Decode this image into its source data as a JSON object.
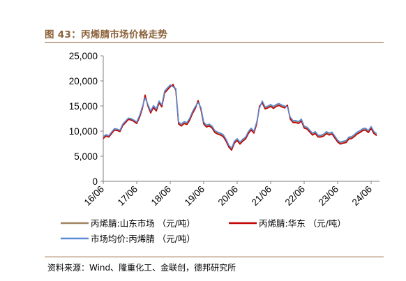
{
  "header": {
    "title": "图 43：丙烯腈市场价格走势"
  },
  "footer": {
    "source": "资料来源：Wind、隆重化工、金联创，德邦研究所"
  },
  "colors": {
    "title": "#8c6239",
    "series_shandong": "#a08563",
    "series_huadong": "#c00000",
    "series_junjia": "#5b8bd4"
  },
  "chart_data": {
    "type": "line",
    "title": "",
    "xlabel": "",
    "ylabel": "",
    "ylim": [
      0,
      25000
    ],
    "yticks": [
      0,
      5000,
      10000,
      15000,
      20000,
      25000
    ],
    "ytick_labels": [
      "0",
      "5,000",
      "10,000",
      "15,000",
      "20,000",
      "25,000"
    ],
    "x_ticks": [
      "16/06",
      "17/06",
      "18/06",
      "19/06",
      "20/06",
      "21/06",
      "22/06",
      "23/06",
      "24/06"
    ],
    "xlim": [
      "2016-06",
      "2024-09"
    ],
    "grid": false,
    "legend_position": "bottom",
    "x": [
      "2016-06",
      "2016-07",
      "2016-08",
      "2016-09",
      "2016-10",
      "2016-11",
      "2016-12",
      "2017-01",
      "2017-02",
      "2017-03",
      "2017-04",
      "2017-05",
      "2017-06",
      "2017-07",
      "2017-08",
      "2017-09",
      "2017-10",
      "2017-11",
      "2017-12",
      "2018-01",
      "2018-02",
      "2018-03",
      "2018-04",
      "2018-05",
      "2018-06",
      "2018-07",
      "2018-08",
      "2018-09",
      "2018-10",
      "2018-11",
      "2018-12",
      "2019-01",
      "2019-02",
      "2019-03",
      "2019-04",
      "2019-05",
      "2019-06",
      "2019-07",
      "2019-08",
      "2019-09",
      "2019-10",
      "2019-11",
      "2019-12",
      "2020-01",
      "2020-02",
      "2020-03",
      "2020-04",
      "2020-05",
      "2020-06",
      "2020-07",
      "2020-08",
      "2020-09",
      "2020-10",
      "2020-11",
      "2020-12",
      "2021-01",
      "2021-02",
      "2021-03",
      "2021-04",
      "2021-05",
      "2021-06",
      "2021-07",
      "2021-08",
      "2021-09",
      "2021-10",
      "2021-11",
      "2021-12",
      "2022-01",
      "2022-02",
      "2022-03",
      "2022-04",
      "2022-05",
      "2022-06",
      "2022-07",
      "2022-08",
      "2022-09",
      "2022-10",
      "2022-11",
      "2022-12",
      "2023-01",
      "2023-02",
      "2023-03",
      "2023-04",
      "2023-05",
      "2023-06",
      "2023-07",
      "2023-08",
      "2023-09",
      "2023-10",
      "2023-11",
      "2023-12",
      "2024-01",
      "2024-02",
      "2024-03",
      "2024-04",
      "2024-05",
      "2024-06",
      "2024-07",
      "2024-08"
    ],
    "series": [
      {
        "name": "丙烯腈:山东市场 （元/吨）",
        "key": "shandong",
        "values": [
          8700,
          9100,
          8900,
          9600,
          10300,
          10200,
          10000,
          11200,
          11800,
          12400,
          12300,
          12000,
          11600,
          12900,
          14600,
          17000,
          15200,
          13800,
          14900,
          14200,
          15800,
          15000,
          17800,
          18400,
          19000,
          19100,
          18300,
          11600,
          11200,
          11700,
          11500,
          12400,
          13700,
          14700,
          16000,
          14500,
          11600,
          11000,
          11200,
          10800,
          9900,
          9600,
          9400,
          9100,
          8200,
          7000,
          6400,
          7800,
          8300,
          7600,
          8200,
          8600,
          9700,
          10400,
          9800,
          11600,
          14900,
          15800,
          14600,
          14800,
          15100,
          14700,
          15100,
          15300,
          15000,
          14800,
          15000,
          12600,
          11900,
          11900,
          11700,
          12200,
          10800,
          10600,
          10000,
          9400,
          9700,
          9000,
          9000,
          9200,
          9700,
          9400,
          9600,
          8800,
          8000,
          7600,
          7800,
          7900,
          8600,
          8700,
          9100,
          9600,
          9900,
          10300,
          10400,
          9900,
          10700,
          9700,
          9300
        ]
      },
      {
        "name": "丙烯腈:华东 （元/吨）",
        "key": "huadong",
        "values": [
          8500,
          9000,
          8800,
          9500,
          10200,
          10100,
          9900,
          11100,
          11700,
          12300,
          12200,
          11900,
          11500,
          12700,
          14400,
          17200,
          15000,
          13600,
          14700,
          14000,
          15600,
          14800,
          17600,
          18200,
          18800,
          19300,
          18100,
          11400,
          11000,
          11500,
          11300,
          12200,
          13500,
          14500,
          16100,
          14300,
          11400,
          10800,
          11000,
          10600,
          9700,
          9400,
          9200,
          8900,
          8000,
          6800,
          6200,
          7600,
          8100,
          7400,
          8000,
          8400,
          9500,
          10200,
          9600,
          11400,
          15000,
          15600,
          14400,
          14600,
          14900,
          14500,
          14900,
          15100,
          14800,
          14600,
          15200,
          12400,
          11700,
          11700,
          11500,
          12000,
          10600,
          10400,
          9800,
          9200,
          9500,
          8800,
          8800,
          9000,
          9500,
          9200,
          9400,
          8600,
          7800,
          7400,
          7600,
          7700,
          8400,
          8500,
          8900,
          9400,
          9700,
          10100,
          10200,
          9700,
          10500,
          9500,
          9100
        ]
      },
      {
        "name": "市场均价:丙烯腈 （元/吨）",
        "key": "junjia",
        "values": [
          8900,
          9300,
          9100,
          9800,
          10500,
          10400,
          10200,
          11400,
          12000,
          12600,
          12500,
          12200,
          11800,
          13100,
          14800,
          16600,
          15300,
          14000,
          15100,
          14400,
          16000,
          15200,
          18000,
          18600,
          19200,
          18800,
          18500,
          11800,
          11400,
          11900,
          11700,
          12600,
          13900,
          14900,
          15700,
          14700,
          11800,
          11200,
          11400,
          11000,
          10100,
          9800,
          9600,
          9300,
          8400,
          7200,
          6600,
          8000,
          8500,
          7800,
          8400,
          8800,
          9900,
          10600,
          10000,
          11800,
          14600,
          16000,
          14800,
          15000,
          15300,
          14900,
          15300,
          15500,
          15200,
          15000,
          14800,
          12800,
          12100,
          12100,
          11900,
          12400,
          11000,
          10800,
          10200,
          9600,
          9900,
          9200,
          9200,
          9400,
          9900,
          9600,
          9800,
          9000,
          8200,
          7800,
          8000,
          8100,
          8800,
          8900,
          9300,
          9800,
          10100,
          10500,
          10600,
          10100,
          10900,
          9900,
          9500
        ]
      }
    ]
  }
}
